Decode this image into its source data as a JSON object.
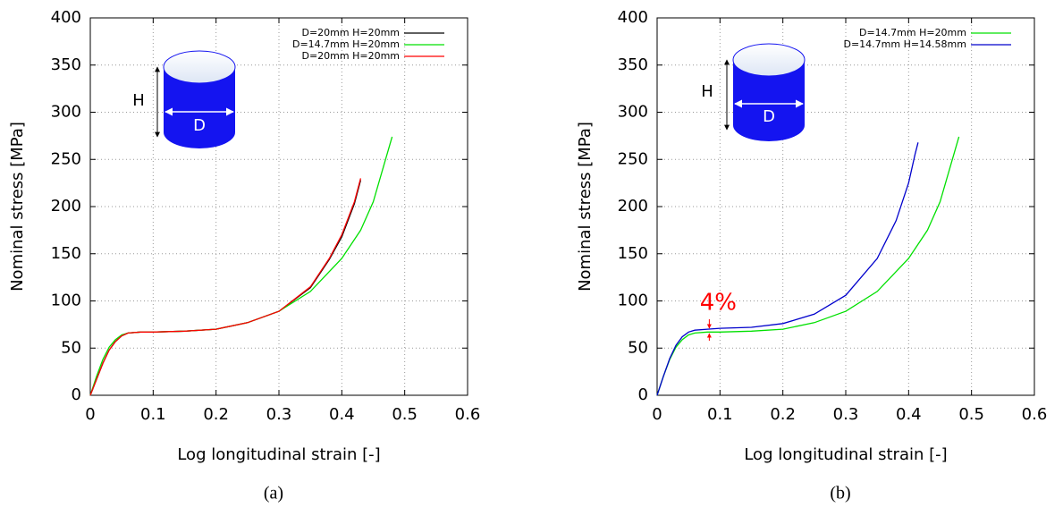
{
  "chart_data": [
    {
      "type": "line",
      "caption": "(a)",
      "xlabel": "Log longitudinal strain [-]",
      "ylabel": "Nominal stress [MPa]",
      "xlim": [
        0,
        0.6
      ],
      "ylim": [
        0,
        400
      ],
      "xticks": [
        0,
        0.1,
        0.2,
        0.3,
        0.4,
        0.5,
        0.6
      ],
      "yticks": [
        0,
        50,
        100,
        150,
        200,
        250,
        300,
        350,
        400
      ],
      "grid": true,
      "legend": "upper right",
      "inset_labels": [
        "H",
        "D"
      ],
      "series": [
        {
          "name": "D=20mm H=20mm",
          "color": "#000000",
          "x": [
            0,
            0.01,
            0.02,
            0.03,
            0.04,
            0.05,
            0.06,
            0.08,
            0.1,
            0.15,
            0.2,
            0.25,
            0.3,
            0.35,
            0.38,
            0.4,
            0.42,
            0.43
          ],
          "values": [
            0,
            17,
            34,
            48,
            57,
            63,
            66,
            67,
            67,
            68,
            70,
            77,
            89,
            114,
            144,
            168,
            203,
            228
          ]
        },
        {
          "name": "D=14.7mm H=20mm",
          "color": "#00e000",
          "x": [
            0,
            0.01,
            0.02,
            0.03,
            0.04,
            0.05,
            0.06,
            0.08,
            0.1,
            0.15,
            0.2,
            0.25,
            0.3,
            0.35,
            0.4,
            0.43,
            0.45,
            0.48
          ],
          "values": [
            0,
            20,
            38,
            51,
            59,
            64,
            66,
            67,
            67,
            68,
            70,
            77,
            89,
            110,
            145,
            175,
            205,
            274
          ]
        },
        {
          "name": "D=20mm H=20mm",
          "color": "#ff0000",
          "x": [
            0,
            0.01,
            0.02,
            0.03,
            0.04,
            0.05,
            0.06,
            0.08,
            0.1,
            0.15,
            0.2,
            0.25,
            0.3,
            0.35,
            0.38,
            0.4,
            0.42,
            0.43
          ],
          "values": [
            0,
            17,
            34,
            48,
            57,
            63,
            66,
            67,
            67,
            68,
            70,
            77,
            89,
            115,
            145,
            170,
            205,
            230
          ]
        }
      ]
    },
    {
      "type": "line",
      "caption": "(b)",
      "xlabel": "Log longitudinal strain [-]",
      "ylabel": "Nominal stress [MPa]",
      "xlim": [
        0,
        0.6
      ],
      "ylim": [
        0,
        400
      ],
      "xticks": [
        0,
        0.1,
        0.2,
        0.3,
        0.4,
        0.5,
        0.6
      ],
      "yticks": [
        0,
        50,
        100,
        150,
        200,
        250,
        300,
        350,
        400
      ],
      "grid": true,
      "legend": "upper right",
      "inset_labels": [
        "H",
        "D"
      ],
      "annotation": "4%",
      "series": [
        {
          "name": "D=14.7mm H=20mm",
          "color": "#00e000",
          "x": [
            0,
            0.01,
            0.02,
            0.03,
            0.04,
            0.05,
            0.06,
            0.08,
            0.1,
            0.15,
            0.2,
            0.25,
            0.3,
            0.35,
            0.4,
            0.43,
            0.45,
            0.48
          ],
          "values": [
            0,
            20,
            38,
            51,
            59,
            64,
            66,
            67,
            67,
            68,
            70,
            77,
            89,
            110,
            145,
            175,
            205,
            274
          ]
        },
        {
          "name": "D=14.7mm H=14.58mm",
          "color": "#0000cc",
          "x": [
            0,
            0.01,
            0.02,
            0.03,
            0.04,
            0.05,
            0.06,
            0.08,
            0.1,
            0.15,
            0.2,
            0.25,
            0.3,
            0.35,
            0.38,
            0.4,
            0.41,
            0.415
          ],
          "values": [
            0,
            20,
            39,
            53,
            62,
            67,
            69,
            70,
            71,
            72,
            76,
            86,
            106,
            145,
            185,
            225,
            255,
            268
          ]
        }
      ]
    }
  ]
}
